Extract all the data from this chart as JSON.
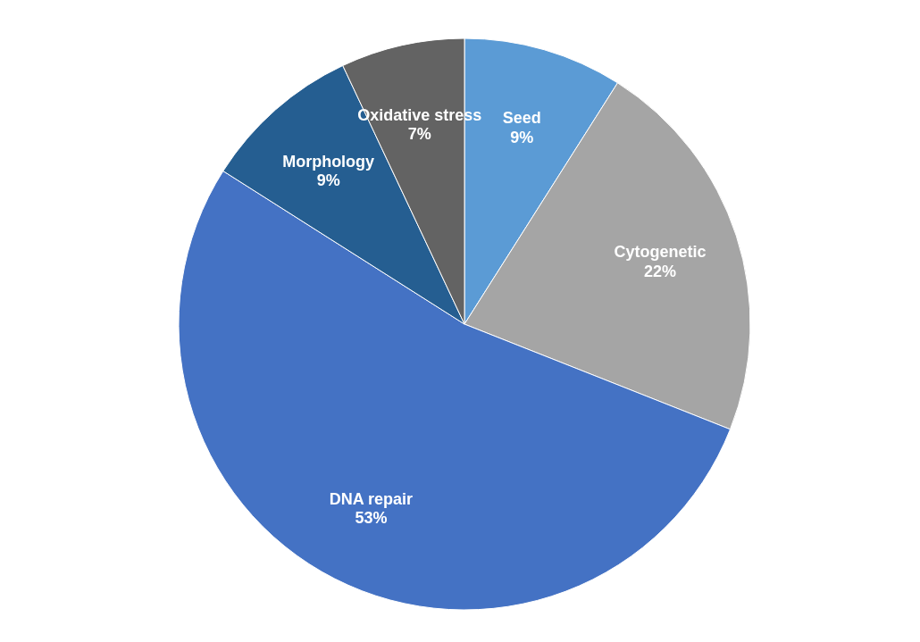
{
  "chart_data": {
    "type": "pie",
    "categories": [
      "Seed",
      "Cytogenetic",
      "DNA repair",
      "Morphology",
      "Oxidative stress"
    ],
    "values": [
      9,
      22,
      53,
      9,
      7
    ],
    "value_labels": [
      "9%",
      "22%",
      "53%",
      "9%",
      "7%"
    ],
    "colors": [
      "#5b9bd5",
      "#a5a5a5",
      "#4472c4",
      "#255e91",
      "#636363"
    ],
    "legend": false
  }
}
